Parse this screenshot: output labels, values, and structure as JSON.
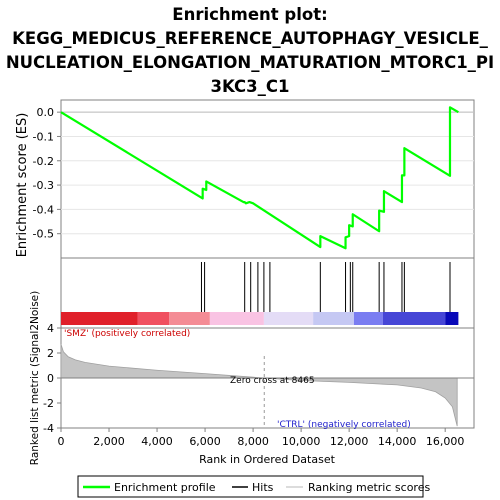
{
  "chart_data": {
    "type": "line",
    "title_lines": [
      "Enrichment plot:",
      "KEGG_MEDICUS_REFERENCE_AUTOPHAGY_VESICLE_",
      "NUCLEATION_ELONGATION_MATURATION_MTORC1_PI",
      "3KC3_C1"
    ],
    "es_panel": {
      "ylabel": "Enrichment score (ES)",
      "ylim": [
        -0.6,
        0.05
      ],
      "yticks": [
        0.0,
        -0.1,
        -0.2,
        -0.3,
        -0.4,
        -0.5
      ],
      "ytick_labels": [
        "0.0",
        "-0.1",
        "-0.2",
        "-0.3",
        "-0.4",
        "-0.5"
      ],
      "color": "#00ff00",
      "points": [
        [
          0,
          0.0
        ],
        [
          5900,
          -0.355
        ],
        [
          5900,
          -0.315
        ],
        [
          6050,
          -0.32
        ],
        [
          6050,
          -0.285
        ],
        [
          7600,
          -0.37
        ],
        [
          7650,
          -0.37
        ],
        [
          7700,
          -0.375
        ],
        [
          7850,
          -0.37
        ],
        [
          8000,
          -0.375
        ],
        [
          10800,
          -0.555
        ],
        [
          10800,
          -0.51
        ],
        [
          11850,
          -0.56
        ],
        [
          11850,
          -0.515
        ],
        [
          12000,
          -0.51
        ],
        [
          12000,
          -0.465
        ],
        [
          12150,
          -0.47
        ],
        [
          12150,
          -0.42
        ],
        [
          13250,
          -0.49
        ],
        [
          13250,
          -0.405
        ],
        [
          13450,
          -0.41
        ],
        [
          13450,
          -0.325
        ],
        [
          14200,
          -0.37
        ],
        [
          14200,
          -0.26
        ],
        [
          14300,
          -0.26
        ],
        [
          14300,
          -0.148
        ],
        [
          16200,
          -0.262
        ],
        [
          16200,
          0.02
        ],
        [
          16550,
          0.0
        ]
      ]
    },
    "hits": [
      5850,
      5980,
      7650,
      7900,
      8200,
      8450,
      8700,
      10800,
      11850,
      12050,
      12150,
      13250,
      13450,
      14200,
      14300,
      16200
    ],
    "gradient_bar": {
      "colors": [
        "#e0202a",
        "#f05060",
        "#f48c95",
        "#f9c3e3",
        "#e4dcf6",
        "#c5c8f3",
        "#7a7df1",
        "#4646d6",
        "#0808b8"
      ],
      "stops": [
        0,
        3200,
        4500,
        6200,
        8450,
        10500,
        12200,
        13400,
        16000,
        16550
      ]
    },
    "metric_panel": {
      "ylabel": "Ranked list metric (Signal2Noise)",
      "ylim": [
        -4,
        4
      ],
      "yticks": [
        4,
        2,
        0,
        -2,
        -4
      ],
      "ytick_labels": [
        "4",
        "2",
        "0",
        "-2",
        "-4"
      ],
      "curve": [
        [
          0,
          2.7
        ],
        [
          100,
          2.1
        ],
        [
          300,
          1.7
        ],
        [
          600,
          1.45
        ],
        [
          1000,
          1.25
        ],
        [
          2000,
          0.95
        ],
        [
          4000,
          0.62
        ],
        [
          6000,
          0.35
        ],
        [
          8465,
          0.0
        ],
        [
          10000,
          -0.2
        ],
        [
          12000,
          -0.35
        ],
        [
          14000,
          -0.55
        ],
        [
          15000,
          -0.8
        ],
        [
          15600,
          -1.1
        ],
        [
          16000,
          -1.6
        ],
        [
          16300,
          -2.3
        ],
        [
          16500,
          -3.85
        ]
      ],
      "zero_cross": 8465,
      "zero_cross_label": "Zero cross at 8465",
      "pos_label": "'SMZ' (positively correlated)",
      "neg_label": "'CTRL' (negatively correlated)"
    },
    "x_axis": {
      "xlabel": "Rank in Ordered Dataset",
      "xlim": [
        0,
        17200
      ],
      "xticks": [
        0,
        2000,
        4000,
        6000,
        8000,
        10000,
        12000,
        14000,
        16000
      ],
      "xtick_labels": [
        "0",
        "2,000",
        "4,000",
        "6,000",
        "8,000",
        "10,000",
        "12,000",
        "14,000",
        "16,000"
      ]
    },
    "legend": {
      "items": [
        "Enrichment profile",
        "Hits",
        "Ranking metric scores"
      ],
      "colors": [
        "#00ff00",
        "#000000",
        "#d0d0d0"
      ]
    }
  }
}
